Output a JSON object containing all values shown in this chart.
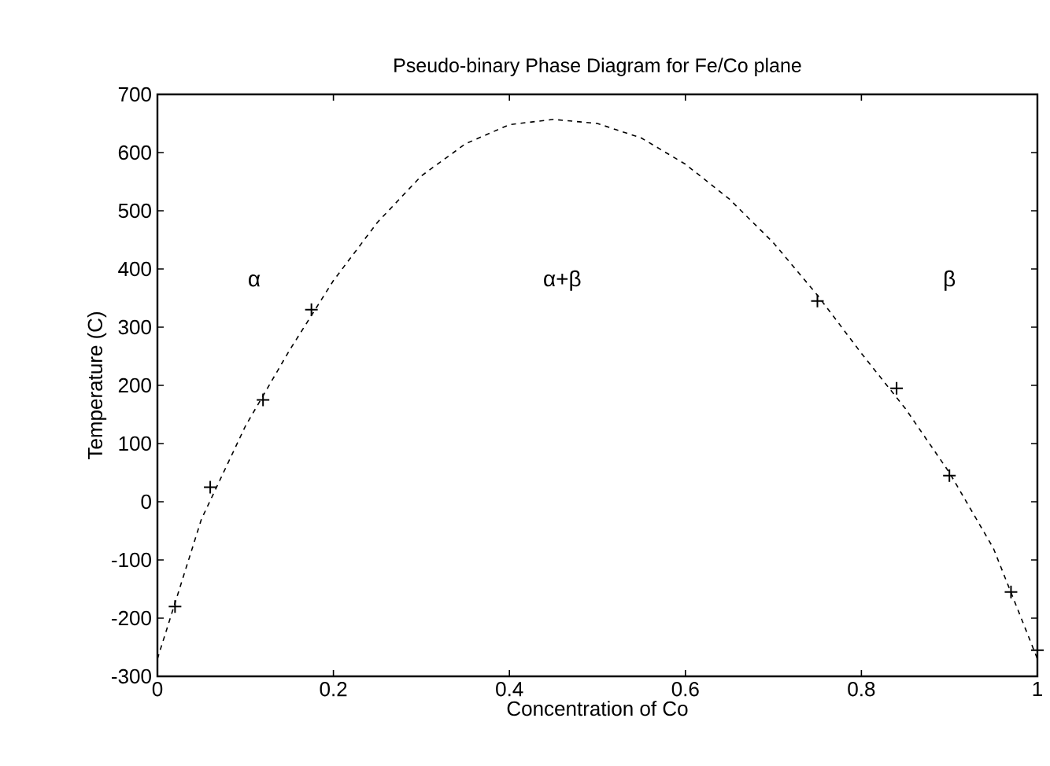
{
  "chart_data": {
    "type": "scatter",
    "title": "Pseudo-binary Phase Diagram for Fe/Co plane",
    "xlabel": "Concentration of Co",
    "ylabel": "Temperature (C)",
    "xlim": [
      0,
      1
    ],
    "ylim": [
      -300,
      700
    ],
    "xticks": [
      0,
      0.2,
      0.4,
      0.6,
      0.8,
      1
    ],
    "yticks": [
      -300,
      -200,
      -100,
      0,
      100,
      200,
      300,
      400,
      500,
      600,
      700
    ],
    "grid": false,
    "series": [
      {
        "marker": "cross",
        "color": "#000000",
        "x": [
          0.02,
          0.06,
          0.12,
          0.175,
          0.75,
          0.84,
          0.9,
          0.97,
          1.0
        ],
        "values": [
          -180,
          25,
          175,
          330,
          345,
          195,
          45,
          -155,
          -255
        ]
      },
      {
        "type": "line",
        "line_style": "dashed",
        "marker": "none",
        "color": "#000000",
        "x": [
          0,
          0.05,
          0.1,
          0.15,
          0.2,
          0.25,
          0.3,
          0.35,
          0.4,
          0.45,
          0.5,
          0.55,
          0.6,
          0.65,
          0.7,
          0.75,
          0.8,
          0.85,
          0.9,
          0.95,
          1.0
        ],
        "values": [
          -270,
          -30,
          130,
          260,
          380,
          480,
          560,
          615,
          648,
          657,
          650,
          625,
          580,
          520,
          445,
          355,
          255,
          160,
          50,
          -80,
          -270
        ]
      }
    ],
    "annotations": [
      "α",
      "α+β",
      "β"
    ]
  }
}
